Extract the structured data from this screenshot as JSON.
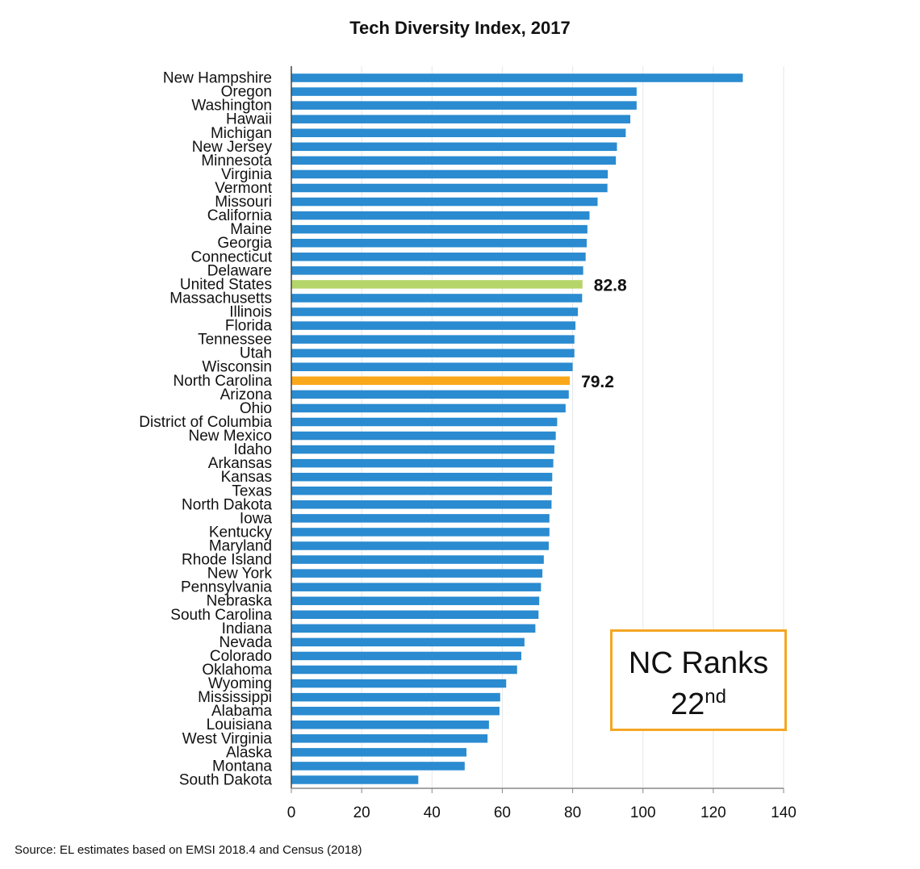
{
  "chart_data": {
    "type": "bar",
    "orientation": "horizontal",
    "title": "Tech Diversity Index, 2017",
    "xlabel": "",
    "ylabel": "",
    "xlim": [
      0,
      140
    ],
    "xticks": [
      0,
      20,
      40,
      60,
      80,
      100,
      120,
      140
    ],
    "grid": true,
    "categories": [
      "New Hampshire",
      "Oregon",
      "Washington",
      "Hawaii",
      "Michigan",
      "New Jersey",
      "Minnesota",
      "Virginia",
      "Vermont",
      "Missouri",
      "California",
      "Maine",
      "Georgia",
      "Connecticut",
      "Delaware",
      "United States",
      "Massachusetts",
      "Illinois",
      "Florida",
      "Tennessee",
      "Utah",
      "Wisconsin",
      "North Carolina",
      "Arizona",
      "Ohio",
      "District of Columbia",
      "New Mexico",
      "Idaho",
      "Arkansas",
      "Kansas",
      "Texas",
      "North Dakota",
      "Iowa",
      "Kentucky",
      "Maryland",
      "Rhode Island",
      "New York",
      "Pennsylvania",
      "Nebraska",
      "South Carolina",
      "Indiana",
      "Nevada",
      "Colorado",
      "Oklahoma",
      "Wyoming",
      "Mississippi",
      "Alabama",
      "Louisiana",
      "West Virginia",
      "Alaska",
      "Montana",
      "South Dakota"
    ],
    "values": [
      128.4,
      98.2,
      98.2,
      96.4,
      95.1,
      92.6,
      92.3,
      90.0,
      89.9,
      87.1,
      84.8,
      84.2,
      84.0,
      83.7,
      83.0,
      82.8,
      82.7,
      81.5,
      80.8,
      80.5,
      80.5,
      80.0,
      79.2,
      78.9,
      78.0,
      75.6,
      75.2,
      74.8,
      74.5,
      74.2,
      74.1,
      74.0,
      73.4,
      73.4,
      73.2,
      71.8,
      71.4,
      71.0,
      70.5,
      70.3,
      69.4,
      66.3,
      65.4,
      64.2,
      61.1,
      59.4,
      59.2,
      56.2,
      55.8,
      49.8,
      49.3,
      36.1
    ],
    "highlights": [
      {
        "category": "United States",
        "color": "#b5d56a",
        "label": "82.8"
      },
      {
        "category": "North Carolina",
        "color": "#f9a81b",
        "label": "79.2"
      }
    ],
    "bar_color": "#2a8bd0"
  },
  "annotation": {
    "line1": "NC Ranks",
    "rank": "22",
    "suffix": "nd",
    "border_color": "#f5a623"
  },
  "source": "Source: EL estimates based on EMSI 2018.4 and Census (2018)"
}
